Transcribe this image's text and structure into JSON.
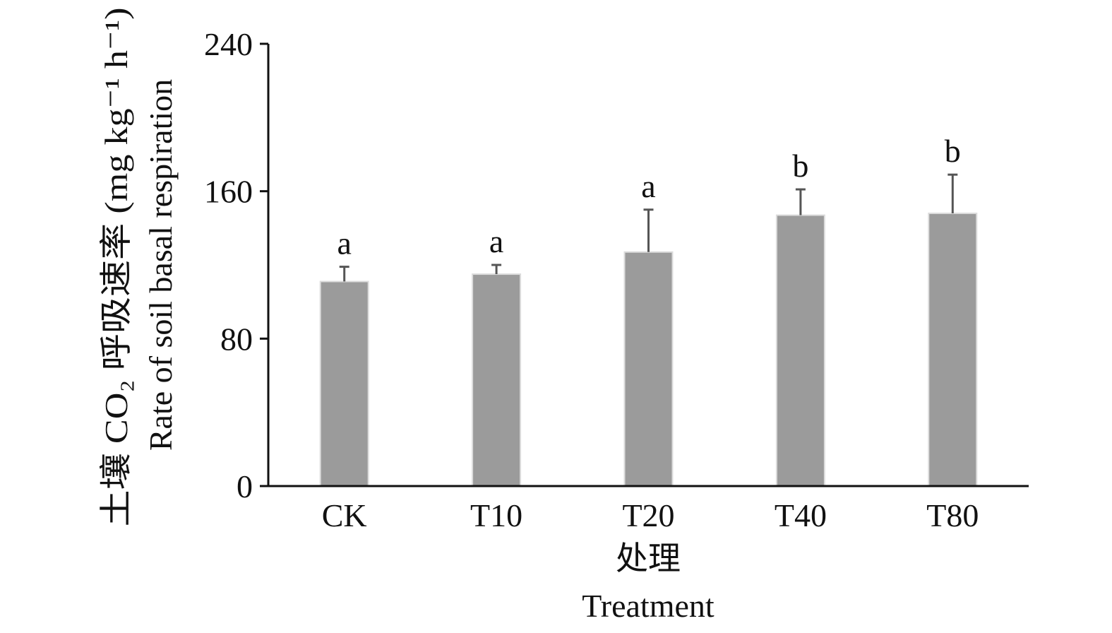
{
  "chart_data": {
    "type": "bar",
    "categories": [
      "CK",
      "T10",
      "T20",
      "T40",
      "T80"
    ],
    "values": [
      111,
      115,
      127,
      147,
      148
    ],
    "error": [
      8,
      5,
      23,
      14,
      21
    ],
    "significance": [
      "a",
      "a",
      "a",
      "b",
      "b"
    ],
    "ylim": [
      0,
      240
    ],
    "yticks": [
      "0",
      "80",
      "160",
      "240"
    ],
    "xlabel_zh": "处理",
    "xlabel_en": "Treatment",
    "ylabel_zh": "土壤 CO₂ 呼吸速率 (mg kg⁻¹ h⁻¹)",
    "ylabel_en": "Rate of soil basal respiration",
    "bar_color": "#9b9b9b",
    "grid": false,
    "legend": "none"
  }
}
